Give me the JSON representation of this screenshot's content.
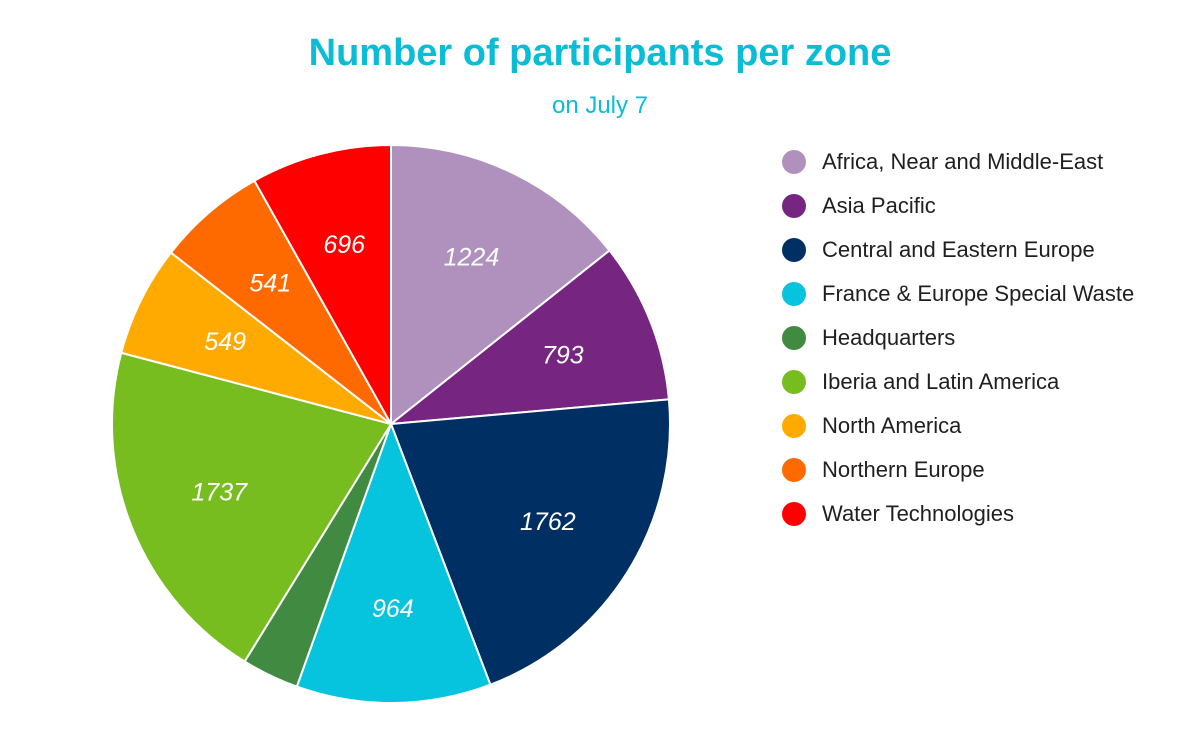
{
  "chart_data": {
    "type": "pie",
    "title": "Number of participants per zone",
    "subtitle": "on July 7",
    "legend_position": "right",
    "categories": [
      "Africa, Near and Middle-East",
      "Asia Pacific",
      "Central and Eastern Europe",
      "France & Europe Special Waste",
      "Headquarters",
      "Iberia and Latin America",
      "North America",
      "Northern Europe",
      "Water Technologies"
    ],
    "values": [
      1224,
      793,
      1762,
      964,
      283,
      1737,
      549,
      541,
      696
    ],
    "labels": [
      "1224",
      "793",
      "1762",
      "964",
      "",
      "1737",
      "549",
      "541",
      "696"
    ],
    "colors": [
      "#B091BD",
      "#762580",
      "#002F63",
      "#06C3DE",
      "#408B41",
      "#78BD1F",
      "#FFAA00",
      "#FF6A00",
      "#FF0000"
    ]
  }
}
